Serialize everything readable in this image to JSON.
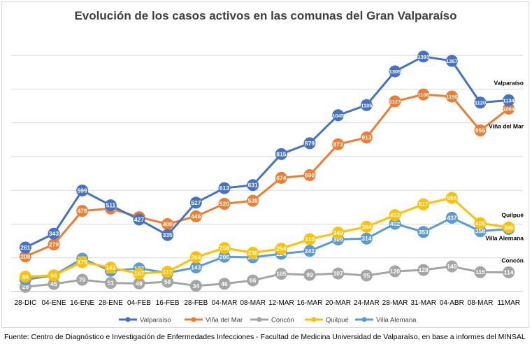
{
  "chart_data": {
    "type": "line",
    "title": "Evolución de los casos activos en las comunas del Gran Valparaíso",
    "xlabel": "",
    "ylabel": "",
    "ylim": [
      0,
      1500
    ],
    "grid": true,
    "legend_position": "bottom",
    "categories": [
      "28-DIC",
      "04-ENE",
      "16-ENE",
      "28-ENE",
      "04-FEB",
      "16-FEB",
      "28-FEB",
      "04-MAR",
      "08-MAR",
      "12-MAR",
      "16-MAR",
      "20-MAR",
      "24-MAR",
      "28-MAR",
      "31-MAR",
      "04-ABR",
      "08-MAR",
      "11MAR"
    ],
    "series": [
      {
        "name": "Valparaíso",
        "end_label": "Valparaíso",
        "color": "#4472c4",
        "values": [
          261,
          343,
          599,
          511,
          427,
          335,
          527,
          613,
          631,
          815,
          879,
          1045,
          1105,
          1305,
          1393,
          1367,
          1120,
          1134
        ]
      },
      {
        "name": "Viña del Mar",
        "end_label": "Viña del Mar",
        "color": "#ed7d31",
        "values": [
          208,
          279,
          478,
          492,
          441,
          400,
          446,
          520,
          538,
          674,
          690,
          873,
          913,
          1127,
          1168,
          1156,
          955,
          1084
        ]
      },
      {
        "name": "Concón",
        "end_label": "Concón",
        "color": "#a5a5a5",
        "values": [
          28,
          45,
          70,
          51,
          48,
          58,
          34,
          46,
          66,
          105,
          99,
          107,
          95,
          120,
          128,
          149,
          115,
          114
        ]
      },
      {
        "name": "Quilpué",
        "end_label": "Quilpué",
        "color": "#ffc000",
        "values": [
          88,
          96,
          175,
          142,
          107,
          117,
          204,
          258,
          230,
          254,
          310,
          349,
          384,
          453,
          517,
          555,
          405,
          380
        ]
      },
      {
        "name": "Villa Alemana",
        "end_label": "Villa Alemana",
        "color": "#5b9bd5",
        "values": [
          71,
          96,
          195,
          123,
          137,
          111,
          143,
          206,
          203,
          224,
          241,
          309,
          314,
          402,
          353,
          437,
          358,
          371
        ]
      }
    ]
  },
  "source_note": "Fuente: Centro de Diagnóstico e Investigación de Enfermedades Infecciones - Facultad de Medicina Universidad de Valparaíso, en base a informes del MINSAL"
}
